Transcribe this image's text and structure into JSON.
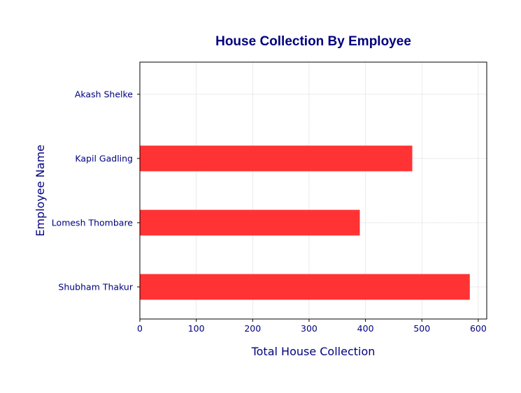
{
  "chart_data": {
    "type": "bar",
    "orientation": "horizontal",
    "title": "House Collection By Employee",
    "xlabel": "Total House Collection",
    "ylabel": "Employee Name",
    "categories": [
      "Shubham Thakur",
      "Lomesh Thombare",
      "Kapil Gadling",
      "Akash Shelke"
    ],
    "values": [
      585,
      390,
      483,
      0
    ],
    "xlim": [
      0,
      615
    ],
    "xticks": [
      0,
      100,
      200,
      300,
      400,
      500,
      600
    ],
    "grid": true,
    "bar_color": "#ff3333",
    "text_color": "#000080"
  }
}
